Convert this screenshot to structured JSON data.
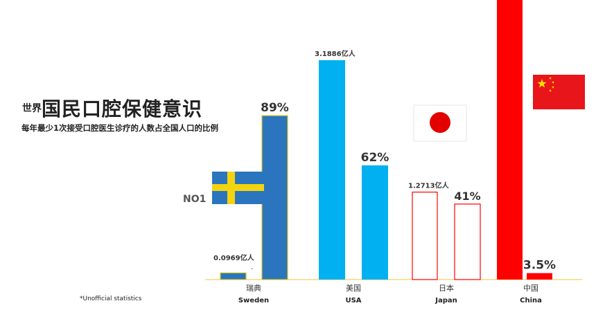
{
  "title": {
    "prefix": "世界",
    "main": "国民口腔保健意识"
  },
  "subtitle": "每年最少1次接受口腔医生诊疗的人数占全国人口的比例",
  "badge": "NO1",
  "footnote": "*Unofficial statistics",
  "colors": {
    "Sweden": "#2a75bd",
    "USA": "#00b0f0",
    "Japan": "#ff0000",
    "China": "#ff0000",
    "sweden_border": "#d8c21a",
    "axis": "#f2c53f"
  },
  "chart_data": {
    "type": "bar",
    "categories": [
      {
        "cn": "瑞典",
        "en": "Sweden"
      },
      {
        "cn": "美国",
        "en": "USA"
      },
      {
        "cn": "日本",
        "en": "Japan"
      },
      {
        "cn": "中国",
        "en": "China"
      }
    ],
    "series": [
      {
        "unit": "亿人",
        "values": [
          0.0969,
          3.1886,
          1.2713,
          13.9
        ],
        "labels": [
          "0.0969亿人",
          "3.1886亿人",
          "1.2713亿人",
          ""
        ]
      },
      {
        "unit": "%",
        "values": [
          89,
          62,
          41,
          3.5
        ],
        "labels": [
          "89%",
          "62%",
          "41%",
          "3.5%"
        ]
      }
    ],
    "fill_styles": [
      "solid",
      "solid",
      "outline",
      "solid"
    ],
    "flags": [
      "sweden-flag",
      "usa-flag-none",
      "japan-flag",
      "china-flag"
    ],
    "stray_mark": "."
  }
}
